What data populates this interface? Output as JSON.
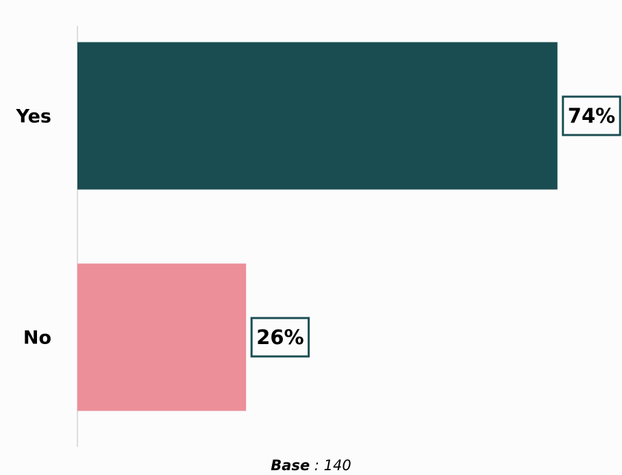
{
  "chart_data": {
    "type": "hbar",
    "categories": [
      "Yes",
      "No"
    ],
    "values": [
      74,
      26
    ],
    "value_labels": [
      "74%",
      "26%"
    ],
    "colors": [
      "#1a4d52",
      "#ec8f99"
    ],
    "label_border_color": "#1a4d52",
    "xlim": [
      0,
      100
    ],
    "footnote_label": "Base",
    "footnote_text": ": 140"
  }
}
